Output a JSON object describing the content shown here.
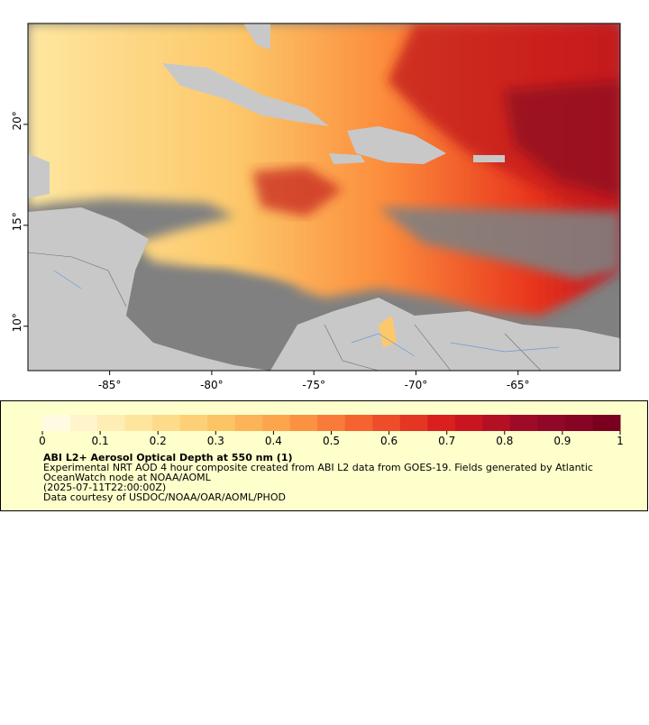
{
  "map": {
    "xlim": [
      -89,
      -60
    ],
    "ylim": [
      7.8,
      25
    ],
    "xticks": [
      {
        "value": -85,
        "label": "-85°"
      },
      {
        "value": -80,
        "label": "-80°"
      },
      {
        "value": -75,
        "label": "-75°"
      },
      {
        "value": -70,
        "label": "-70°"
      },
      {
        "value": -65,
        "label": "-65°"
      }
    ],
    "yticks": [
      {
        "value": 10,
        "label": "10°"
      },
      {
        "value": 15,
        "label": "15°"
      },
      {
        "value": 20,
        "label": "20°"
      }
    ]
  },
  "colorbar": {
    "range": [
      0,
      1
    ],
    "steps": 21,
    "colormap": [
      "#fffbe3",
      "#fee7a0",
      "#fdc86a",
      "#fc9c45",
      "#f45a2c",
      "#d7191c",
      "#9b0a2a",
      "#7a0020"
    ],
    "ticks": [
      0,
      0.1,
      0.2,
      0.3,
      0.4,
      0.5,
      0.6,
      0.7,
      0.8,
      0.9,
      1
    ]
  },
  "legend": {
    "title": "ABI L2+ Aerosol Optical Depth at 550 nm (1)",
    "lines": [
      "Experimental NRT AOD 4 hour composite created from ABI L2 data from GOES-19. Fields generated by Atlantic",
      "OceanWatch node at NOAA/AOML",
      "(2025-07-11T22:00:00Z)",
      "Data courtesy of USDOC/NOAA/OAR/AOML/PHOD"
    ]
  }
}
